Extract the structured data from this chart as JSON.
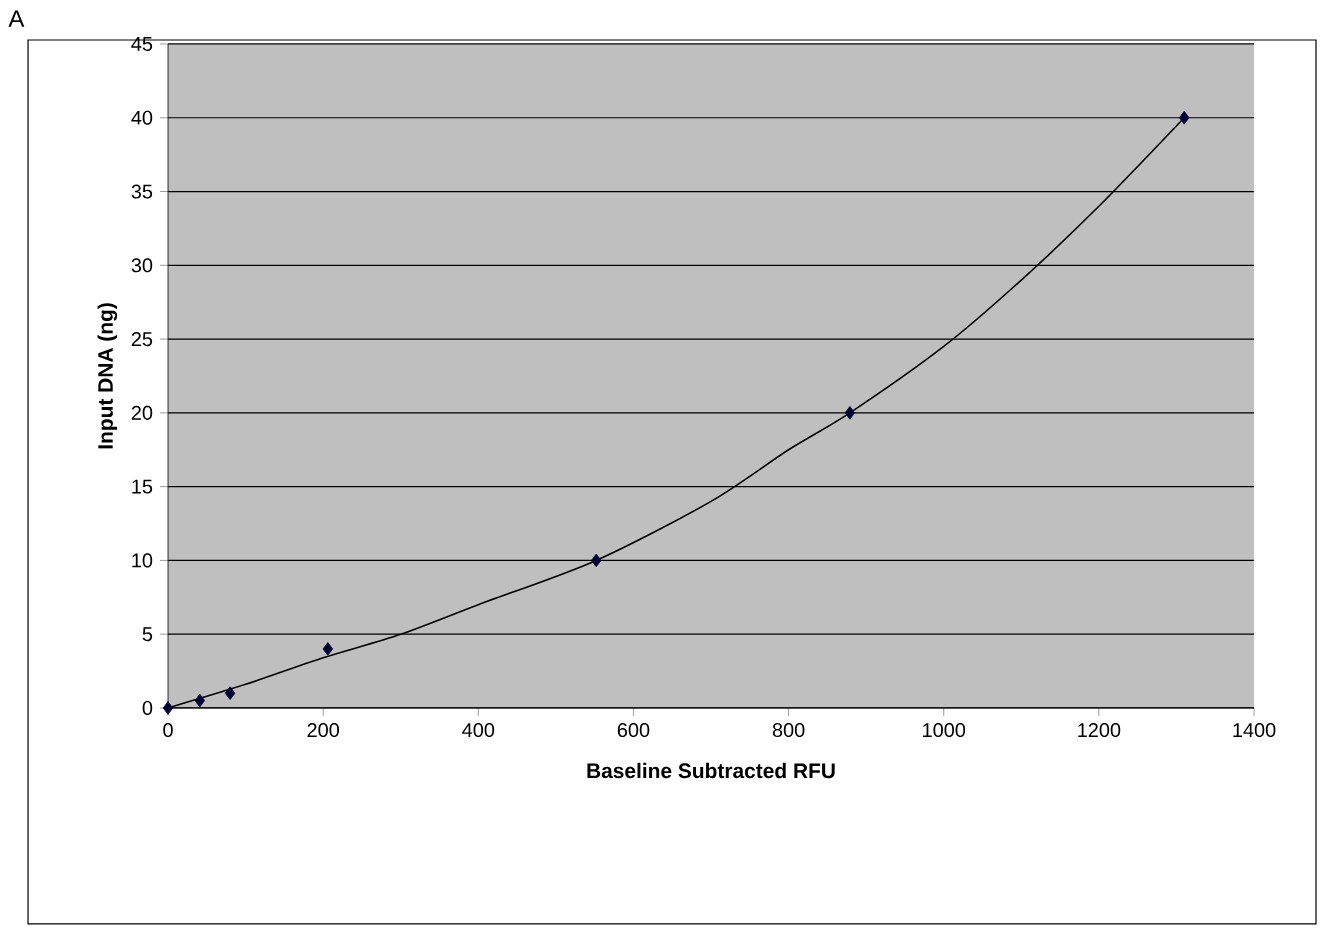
{
  "chart_data": {
    "type": "scatter",
    "title": "A",
    "xlabel": "Baseline Subtracted RFU",
    "ylabel": "Input DNA (ng)",
    "x": [
      0,
      41,
      80,
      206,
      552,
      879,
      1310
    ],
    "series": [
      {
        "color": "#000033",
        "marker": "diamond",
        "values": [
          0,
          0.5,
          1,
          4,
          10,
          20,
          40
        ]
      },
      {
        "type": "line",
        "color": "#000000",
        "marker": "none",
        "x": [
          0,
          100,
          200,
          300,
          400,
          552,
          700,
          800,
          879,
          1000,
          1100,
          1200,
          1310
        ],
        "values": [
          0,
          1.6,
          3.4,
          5,
          7,
          10,
          14,
          17.5,
          20,
          24.5,
          29,
          34,
          40
        ]
      }
    ],
    "xlim": [
      0,
      1400
    ],
    "xticks": [
      0,
      200,
      400,
      600,
      800,
      1000,
      1200,
      1400
    ],
    "ylim": [
      0,
      45
    ],
    "yticks": [
      0,
      5,
      10,
      15,
      20,
      25,
      30,
      35,
      40,
      45
    ],
    "grid": "y"
  }
}
